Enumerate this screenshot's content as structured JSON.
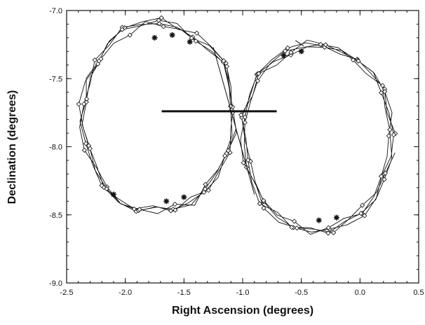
{
  "chart_data": {
    "type": "scatter",
    "title": "",
    "xlabel": "Right Ascension (degrees)",
    "ylabel": "Declination (degrees)",
    "xlim": [
      -2.5,
      0.5
    ],
    "ylim": [
      -9.0,
      -7.0
    ],
    "x_ticks": [
      -2.5,
      -2.0,
      -1.5,
      -1.0,
      -0.5,
      0.0,
      0.5
    ],
    "x_tick_labels": [
      "-2.5",
      "-2.0",
      "-1.5",
      "-1.0",
      "-0.5",
      "0.0",
      "0.5"
    ],
    "y_ticks": [
      -9.0,
      -8.5,
      -8.0,
      -7.5,
      -7.0
    ],
    "y_tick_labels": [
      "-9.0",
      "-8.5",
      "-8.0",
      "-7.5",
      "-7.0"
    ],
    "grid": false,
    "legend": "none",
    "circles": [
      {
        "center_ra": -1.72,
        "center_dec": -7.78,
        "radius_deg": 0.65,
        "line_color": "#111111"
      },
      {
        "center_ra": -0.36,
        "center_dec": -7.93,
        "radius_deg": 0.64,
        "line_color": "#111111"
      }
    ],
    "diamond_marker_color": "#222222",
    "star_marker_color": "#111111",
    "star_positions": [
      {
        "ra": -1.75,
        "dec": -7.2
      },
      {
        "ra": -1.6,
        "dec": -7.18
      },
      {
        "ra": -1.45,
        "dec": -7.23
      },
      {
        "ra": -2.1,
        "dec": -8.35
      },
      {
        "ra": -1.65,
        "dec": -8.4
      },
      {
        "ra": -1.5,
        "dec": -8.37
      },
      {
        "ra": -0.65,
        "dec": -7.33
      },
      {
        "ra": -0.5,
        "dec": -7.3
      },
      {
        "ra": -0.35,
        "dec": -8.54
      },
      {
        "ra": -0.2,
        "dec": -8.52
      }
    ],
    "segments": [
      {
        "ra1": -1.69,
        "dec1": -7.74,
        "ra2": -0.71,
        "dec2": -7.74,
        "width": 3
      },
      {
        "ra1": -1.25,
        "dec1": -7.27,
        "ra2": -0.9,
        "dec2": -8.35,
        "width": 1
      },
      {
        "ra1": -0.55,
        "dec1": -7.22,
        "ra2": -0.48,
        "dec2": -7.26,
        "width": 1
      }
    ]
  }
}
